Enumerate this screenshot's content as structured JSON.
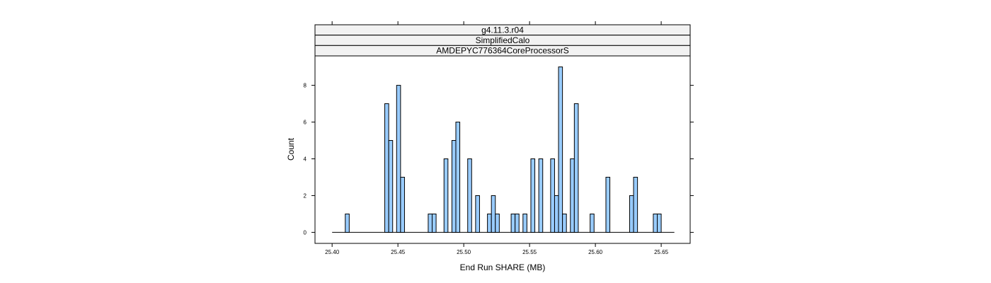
{
  "chart_data": {
    "type": "bar",
    "strips": [
      "g4.11.3.r04",
      "SimplifiedCalo",
      "AMDEPYC776364CoreProcessorS"
    ],
    "xlabel": "End Run SHARE (MB)",
    "ylabel": "Count",
    "xlim": [
      25.387,
      25.672
    ],
    "ylim": [
      -0.6,
      9.6
    ],
    "xticks": [
      25.4,
      25.45,
      25.5,
      25.55,
      25.6,
      25.65
    ],
    "xtick_labels": [
      "25.40",
      "25.45",
      "25.50",
      "25.55",
      "25.60",
      "25.65"
    ],
    "yticks": [
      0,
      2,
      4,
      6,
      8
    ],
    "ytick_labels": [
      "0",
      "2",
      "4",
      "6",
      "8"
    ],
    "baseline_range": [
      25.4,
      25.66
    ],
    "bin_width": 0.003,
    "bars": [
      {
        "x": 25.4115,
        "count": 1
      },
      {
        "x": 25.4415,
        "count": 7
      },
      {
        "x": 25.4445,
        "count": 5
      },
      {
        "x": 25.4505,
        "count": 8
      },
      {
        "x": 25.4535,
        "count": 3
      },
      {
        "x": 25.4745,
        "count": 1
      },
      {
        "x": 25.4775,
        "count": 1
      },
      {
        "x": 25.4865,
        "count": 4
      },
      {
        "x": 25.4925,
        "count": 5
      },
      {
        "x": 25.4955,
        "count": 6
      },
      {
        "x": 25.5045,
        "count": 4
      },
      {
        "x": 25.5105,
        "count": 2
      },
      {
        "x": 25.5195,
        "count": 1
      },
      {
        "x": 25.5225,
        "count": 2
      },
      {
        "x": 25.5255,
        "count": 1
      },
      {
        "x": 25.5375,
        "count": 1
      },
      {
        "x": 25.5405,
        "count": 1
      },
      {
        "x": 25.5465,
        "count": 1
      },
      {
        "x": 25.5525,
        "count": 4
      },
      {
        "x": 25.5585,
        "count": 4
      },
      {
        "x": 25.5675,
        "count": 4
      },
      {
        "x": 25.5705,
        "count": 2
      },
      {
        "x": 25.5735,
        "count": 9
      },
      {
        "x": 25.5765,
        "count": 1
      },
      {
        "x": 25.5825,
        "count": 4
      },
      {
        "x": 25.5855,
        "count": 7
      },
      {
        "x": 25.5975,
        "count": 1
      },
      {
        "x": 25.6095,
        "count": 3
      },
      {
        "x": 25.6275,
        "count": 2
      },
      {
        "x": 25.6305,
        "count": 3
      },
      {
        "x": 25.6455,
        "count": 1
      },
      {
        "x": 25.6485,
        "count": 1
      }
    ],
    "colors": {
      "bar_fill": "#99ccff",
      "bar_stroke": "#000000",
      "strip_fill": "#f2f2f2",
      "frame": "#000000"
    },
    "grid": false,
    "legend": "none"
  }
}
